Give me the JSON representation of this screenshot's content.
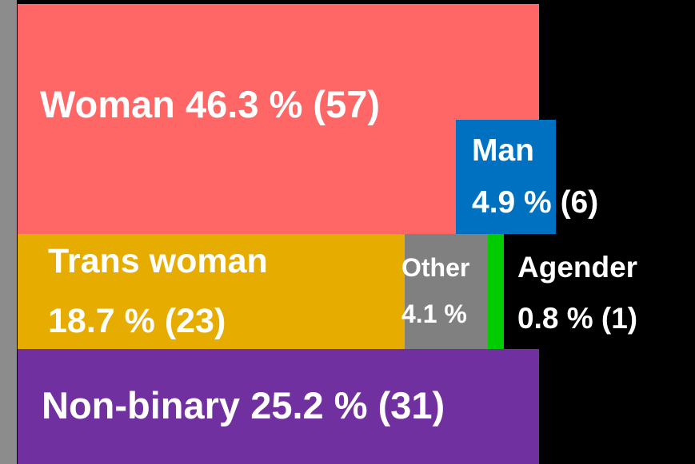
{
  "chart_data": {
    "type": "treemap",
    "categories": [
      "Woman",
      "Man",
      "Trans woman",
      "Other",
      "Agender",
      "Non-binary"
    ],
    "values": [
      46.3,
      4.9,
      18.7,
      4.1,
      0.8,
      25.2
    ],
    "value_labels": [
      "46.3 % (57)",
      "4.9 % (6)",
      "18.7 % (23)",
      "4.1 %",
      "0.8 % (1)",
      "25.2 % (31)"
    ],
    "colors": [
      "#ff6666",
      "#0070c0",
      "#e6ac00",
      "#808080",
      "#00cc00",
      "#7030a0"
    ]
  }
}
